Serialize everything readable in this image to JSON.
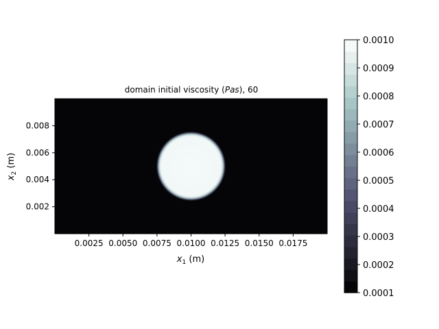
{
  "chart_data": {
    "type": "heatmap",
    "title": {
      "prefix": "domain initial viscosity (",
      "unit": "Pas",
      "suffix": "), 60"
    },
    "xlabel": {
      "var": "x",
      "sub": "1",
      "unit": " (m)"
    },
    "ylabel": {
      "var": "x",
      "sub": "2",
      "unit": " (m)"
    },
    "xlim": [
      0.0,
      0.02
    ],
    "ylim": [
      0.0,
      0.01
    ],
    "x_ticks": [
      0.0025,
      0.005,
      0.0075,
      0.01,
      0.0125,
      0.015,
      0.0175
    ],
    "x_tick_labels": [
      "0.0025",
      "0.0050",
      "0.0075",
      "0.0100",
      "0.0125",
      "0.0150",
      "0.0175"
    ],
    "y_ticks": [
      0.002,
      0.004,
      0.006,
      0.008
    ],
    "y_tick_labels": [
      "0.002",
      "0.004",
      "0.006",
      "0.008"
    ],
    "field": {
      "shape": "circle",
      "center": [
        0.01,
        0.005
      ],
      "radius": 0.0025,
      "inside_value": 0.001,
      "outside_value": 0.0001
    },
    "colorbar": {
      "colormap": "bone",
      "min": 0.0001,
      "max": 0.001,
      "levels": 22,
      "ticks": [
        0.0001,
        0.0002,
        0.0003,
        0.0004,
        0.0005,
        0.0006,
        0.0007,
        0.0008,
        0.0009,
        0.001
      ],
      "tick_labels": [
        "0.0001",
        "0.0002",
        "0.0003",
        "0.0004",
        "0.0005",
        "0.0006",
        "0.0007",
        "0.0008",
        "0.0009",
        "0.0010"
      ]
    }
  }
}
